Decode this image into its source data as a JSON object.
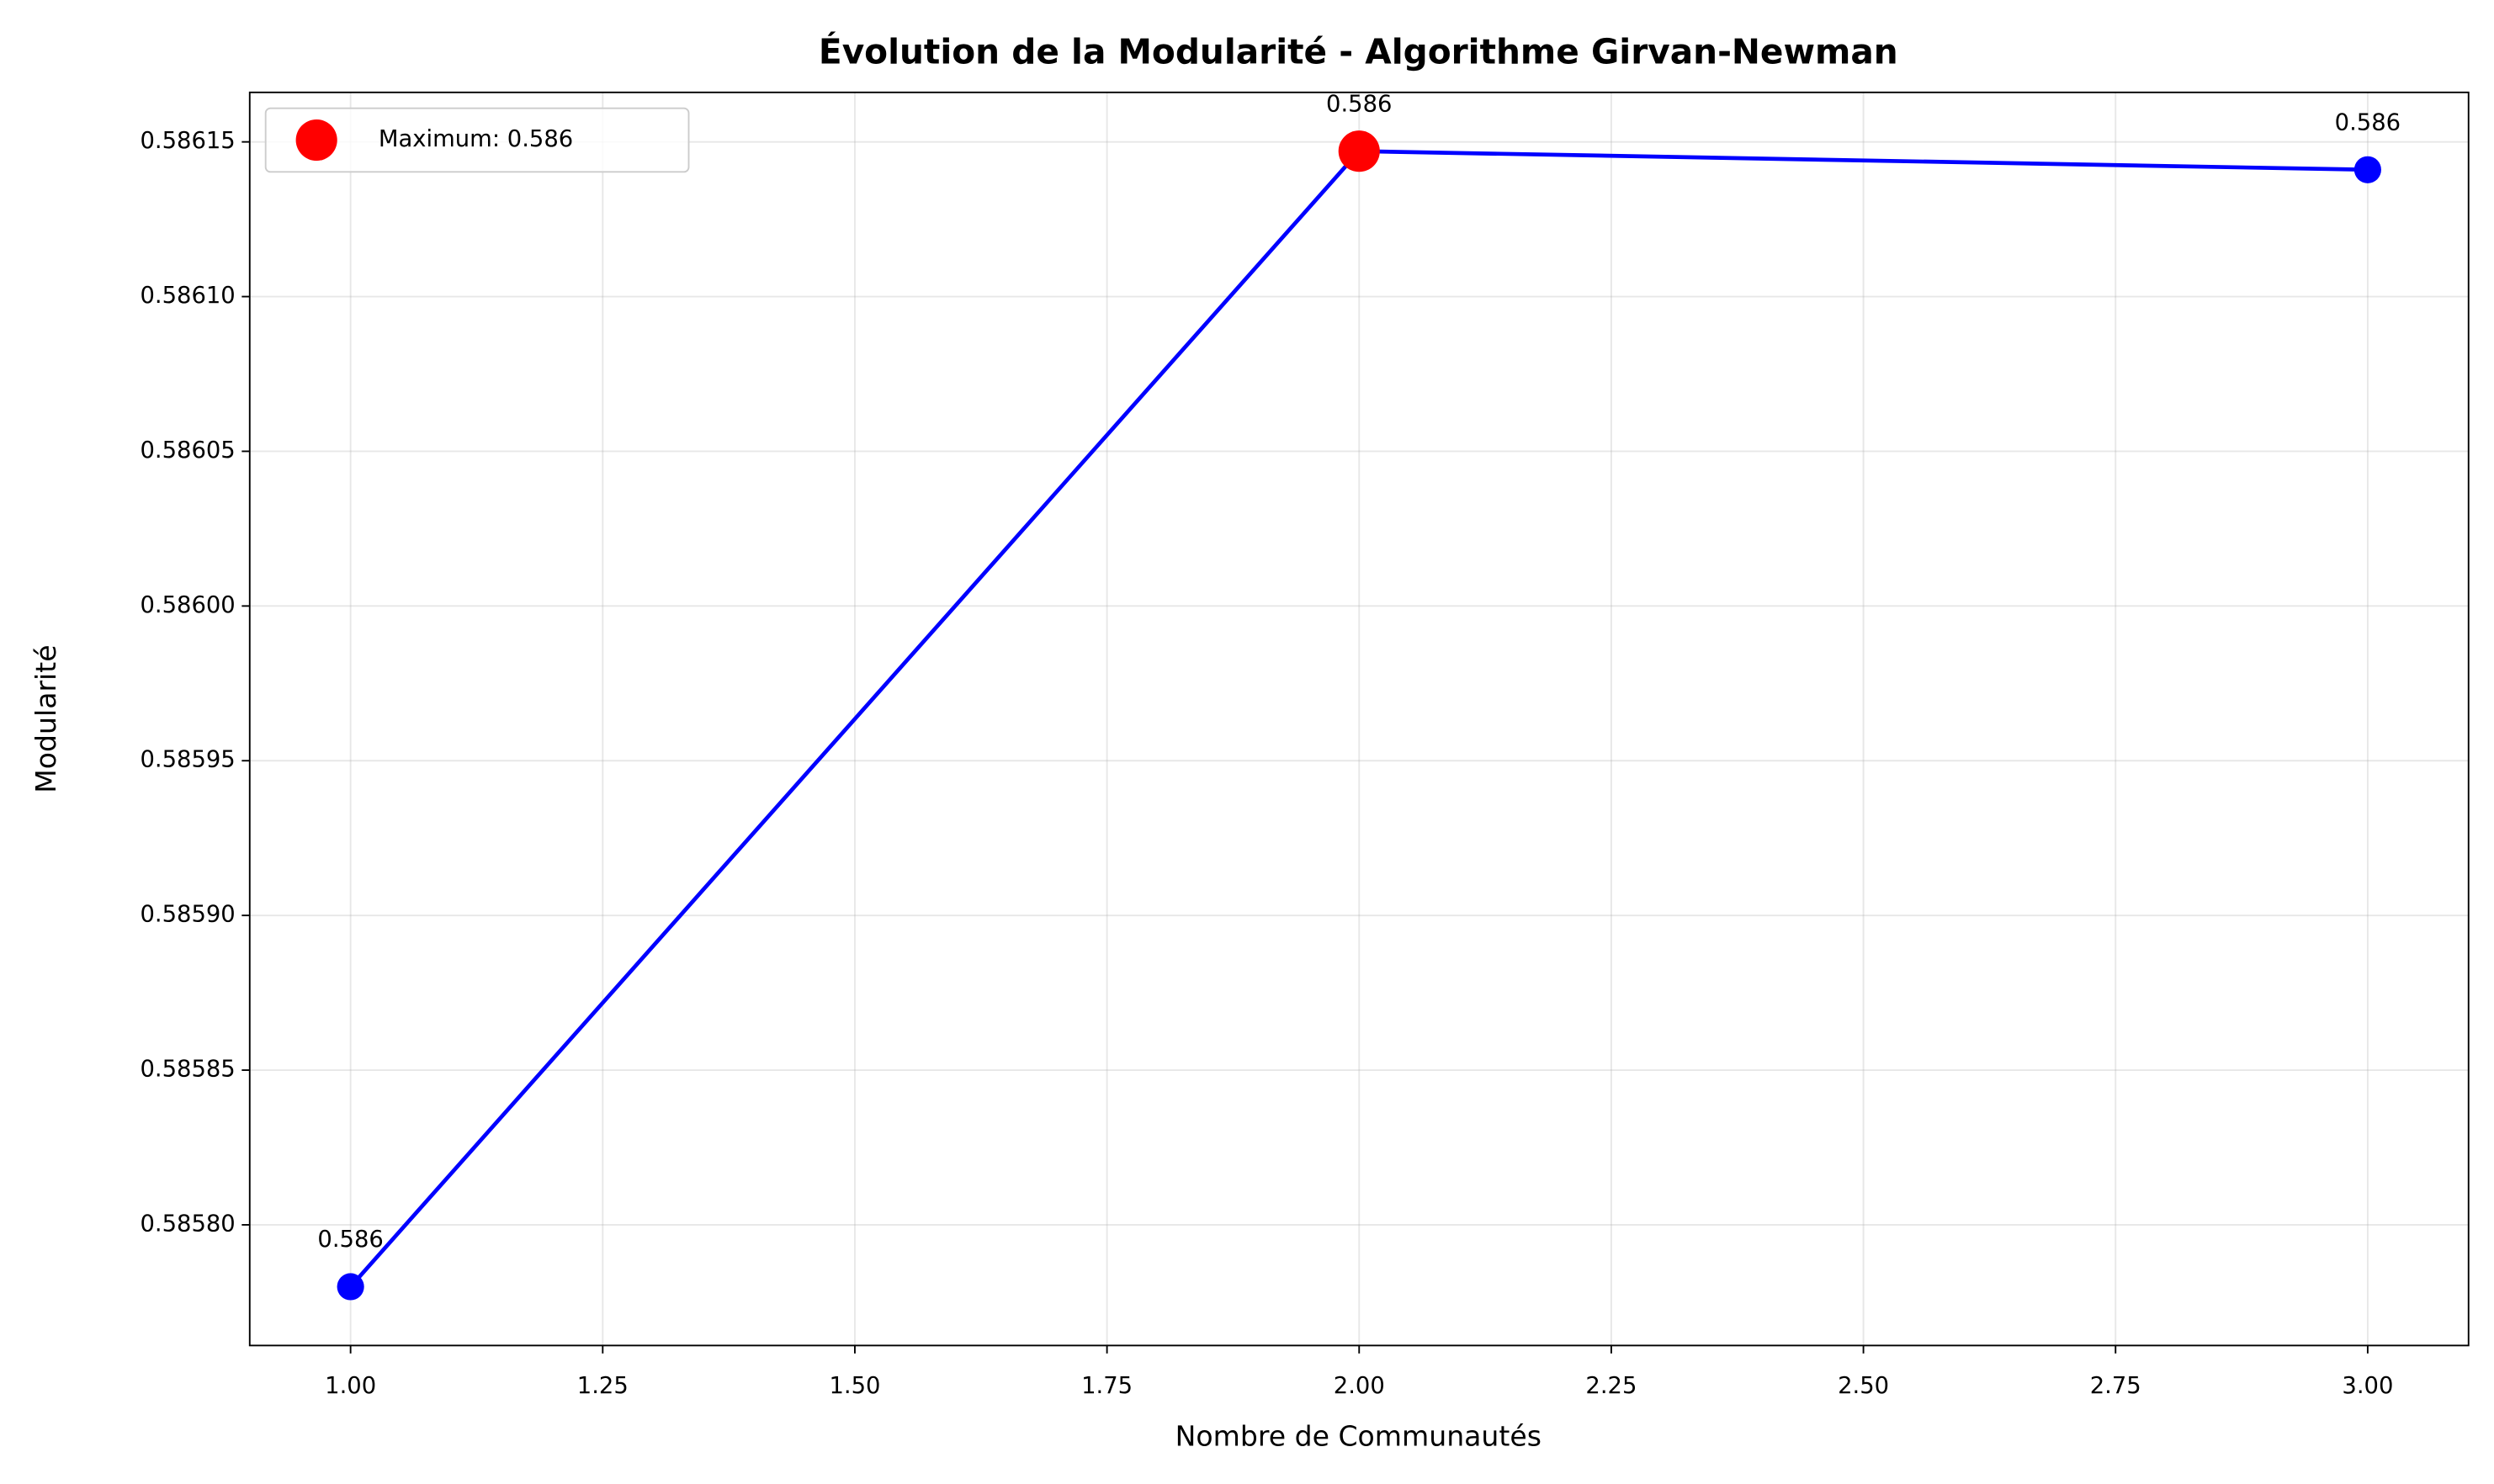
{
  "chart_data": {
    "type": "line",
    "title": "Évolution de la Modularité - Algorithme Girvan-Newman",
    "x_label": "Nombre de Communautés",
    "y_label": "Modularité",
    "x": [
      1,
      2,
      3
    ],
    "series": [
      {
        "color": "#0000ff",
        "values": [
          0.58578,
          0.586147,
          0.586141
        ],
        "value_labels": [
          "0.586",
          "0.586",
          "0.586"
        ]
      },
      {
        "name": "Maximum: 0.586",
        "color": "#ff0000",
        "x": [
          2
        ],
        "values": [
          0.586147
        ]
      }
    ],
    "xlim": [
      0.9,
      3.1
    ],
    "xticks": [
      {
        "value": 1,
        "label": "1.00"
      },
      {
        "value": 1.25,
        "label": "1.25"
      },
      {
        "value": 1.5,
        "label": "1.50"
      },
      {
        "value": 1.75,
        "label": "1.75"
      },
      {
        "value": 2,
        "label": "2.00"
      },
      {
        "value": 2.25,
        "label": "2.25"
      },
      {
        "value": 2.5,
        "label": "2.50"
      },
      {
        "value": 2.75,
        "label": "2.75"
      },
      {
        "value": 3,
        "label": "3.00"
      }
    ],
    "ylim": [
      0.585761,
      0.586166
    ],
    "yticks": [
      {
        "value": 0.5858,
        "label": "0.58580"
      },
      0.58585,
      {
        "value": 0.5859,
        "label": "0.58590"
      },
      0.58595,
      {
        "value": 0.586,
        "label": "0.58600"
      },
      0.58605,
      {
        "value": 0.5861,
        "label": "0.58610"
      },
      0.58615
    ],
    "grid": true,
    "legend": "upper left"
  }
}
